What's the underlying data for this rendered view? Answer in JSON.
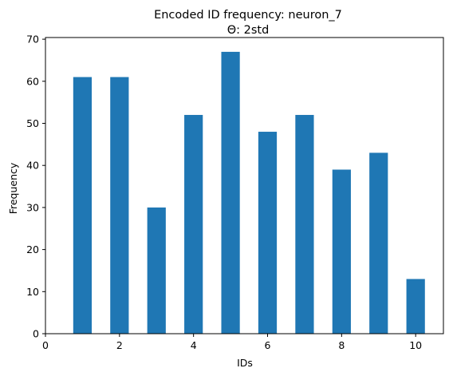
{
  "chart_data": {
    "type": "bar",
    "title": "Encoded ID frequency: neuron_7",
    "subtitle": "Θ: 2std",
    "xlabel": "IDs",
    "ylabel": "Frequency",
    "x": [
      1,
      2,
      3,
      4,
      5,
      6,
      7,
      8,
      9,
      10
    ],
    "values": [
      61,
      61,
      30,
      52,
      67,
      48,
      52,
      39,
      43,
      13
    ],
    "bar_width": 0.5,
    "xlim": [
      0,
      10.75
    ],
    "ylim": [
      0,
      70.4
    ],
    "xticks": [
      0,
      2,
      4,
      6,
      8,
      10
    ],
    "yticks": [
      0,
      10,
      20,
      30,
      40,
      50,
      60,
      70
    ],
    "bar_color": "#1f77b4",
    "grid": false
  }
}
